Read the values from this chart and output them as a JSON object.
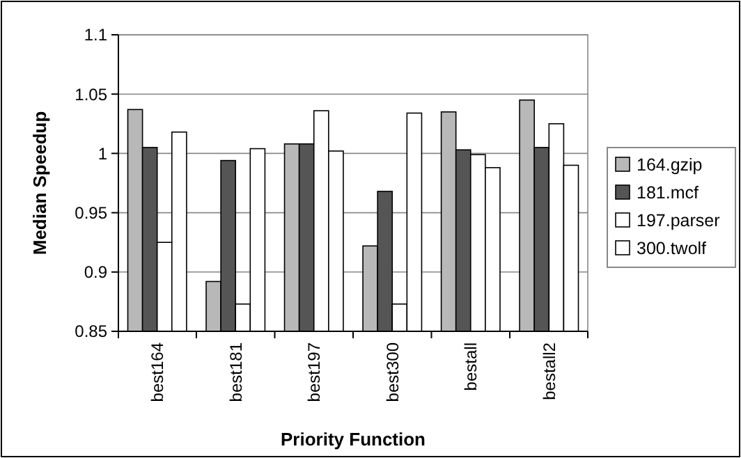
{
  "chart_data": {
    "type": "bar",
    "xlabel": "Priority Function",
    "ylabel": "Median Speedup",
    "categories": [
      "best164",
      "best181",
      "best197",
      "best300",
      "bestall",
      "bestall2"
    ],
    "series": [
      {
        "name": "164.gzip",
        "color": "#b8b8b8",
        "values": [
          1.037,
          0.892,
          1.008,
          0.922,
          1.035,
          1.045
        ]
      },
      {
        "name": "181.mcf",
        "color": "#555555",
        "values": [
          1.005,
          0.994,
          1.008,
          0.968,
          1.003,
          1.005
        ]
      },
      {
        "name": "197.parser",
        "color": "#ffffff",
        "values": [
          0.925,
          0.873,
          1.036,
          0.873,
          0.999,
          1.025
        ]
      },
      {
        "name": "300.twolf",
        "color": "#ffffff",
        "values": [
          1.018,
          1.004,
          1.002,
          1.034,
          0.988,
          0.99
        ]
      }
    ],
    "ylim": [
      0.85,
      1.1
    ],
    "yticks": [
      0.85,
      0.9,
      0.95,
      1,
      1.05,
      1.1
    ],
    "grid": "y",
    "legend": "right"
  }
}
